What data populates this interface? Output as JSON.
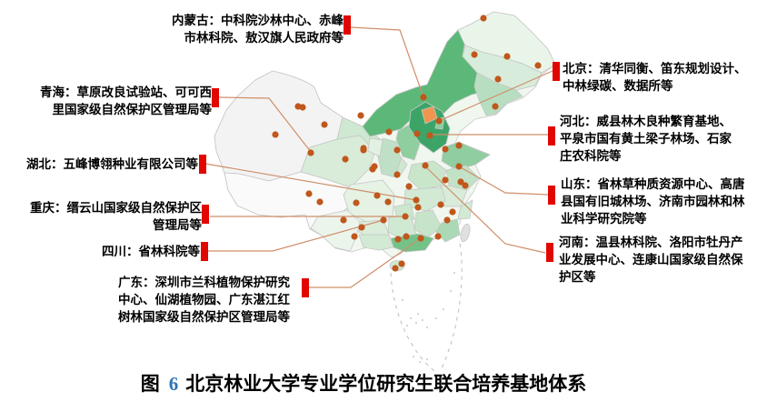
{
  "figure": {
    "prefix": "图",
    "number": "6",
    "title": "北京林业大学专业学位研究生联合培养基地体系"
  },
  "labels": {
    "neimenggu": {
      "region": "内蒙古",
      "text": "内蒙古：中科院沙林中心、赤峰市林科院、敖汉旗人民政府等"
    },
    "qinghai": {
      "region": "青海",
      "text": "青海：草原改良试验站、可可西里国家级自然保护区管理局等"
    },
    "hubei": {
      "region": "湖北",
      "text": "湖北：五峰博翎种业有限公司等"
    },
    "chongqing": {
      "region": "重庆",
      "text": "重庆：缙云山国家级自然保护区管理局等"
    },
    "sichuan": {
      "region": "四川",
      "text": "四川：省林科院等"
    },
    "guangdong": {
      "region": "广东",
      "text": "广东：深圳市兰科植物保护研究中心、仙湖植物园、广东湛江红树林国家级自然保护区管理局等"
    },
    "beijing": {
      "region": "北京",
      "text": "北京：清华同衡、笛东规划设计、中林绿碳、数据所等"
    },
    "hebei": {
      "region": "河北",
      "text": "河北：威县林木良种繁育基地、平泉市国有黄土梁子林场、石家庄农科院等"
    },
    "shandong": {
      "region": "山东",
      "text": "山东：省林草种质资源中心、高唐县国有旧城林场、济南市园林和林业科学研究院等"
    },
    "henan": {
      "region": "河南",
      "text": "河南：温县林科院、洛阳市牡丹产业发展中心、连康山国家级自然保护区等"
    }
  },
  "map": {
    "name": "china-provinces-choropleth",
    "dot_color": "#c0571b",
    "marker_color": "#e10600",
    "leader_color": "#cf8f6b",
    "figure_number_color": "#2e74b5",
    "province_palette": {
      "highlight_beijing": "#f0964f",
      "dark_green": "#3da468",
      "medium_green": "#5cb878",
      "light_green": "#cfe8d1",
      "pale_green": "#eaf5ea",
      "no_data_gray": "#f3f3f3",
      "taiwan_gray": "#e0e0e0"
    }
  }
}
